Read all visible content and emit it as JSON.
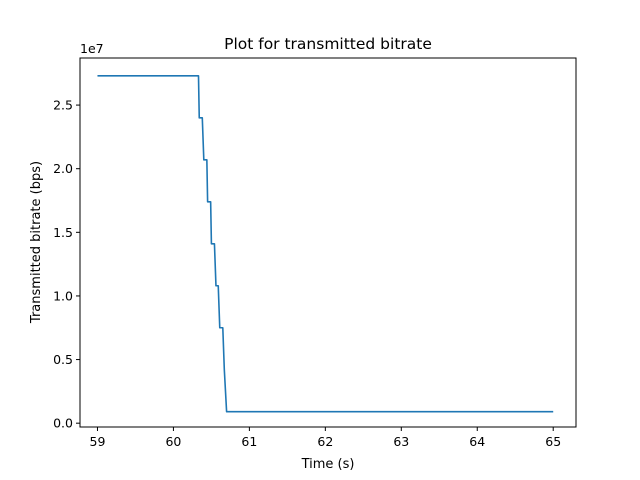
{
  "chart_data": {
    "type": "line",
    "title": "Plot for transmitted bitrate",
    "xlabel": "Time (s)",
    "ylabel": "Transmitted bitrate (bps)",
    "y_offset_label": "1e7",
    "xlim": [
      58.77,
      65.3
    ],
    "ylim": [
      -300000,
      28700000
    ],
    "x_ticks": [
      59,
      60,
      61,
      62,
      63,
      64,
      65
    ],
    "x_tick_labels": [
      "59",
      "60",
      "61",
      "62",
      "63",
      "64",
      "65"
    ],
    "y_ticks": [
      0,
      5000000,
      10000000,
      15000000,
      20000000,
      25000000
    ],
    "y_tick_labels": [
      "0.0",
      "0.5",
      "1.0",
      "1.5",
      "2.0",
      "2.5"
    ],
    "grid": false,
    "line_color": "#1f77b4",
    "series": [
      {
        "x": [
          59.0,
          60.33,
          60.34,
          60.38,
          60.4,
          60.44,
          60.45,
          60.49,
          60.5,
          60.54,
          60.56,
          60.59,
          60.61,
          60.65,
          60.67,
          60.7,
          65.0
        ],
        "values": [
          27300000,
          27300000,
          24000000,
          24000000,
          20700000,
          20700000,
          17400000,
          17400000,
          14100000,
          14100000,
          10800000,
          10800000,
          7500000,
          7500000,
          4200000,
          900000,
          900000
        ]
      }
    ]
  }
}
